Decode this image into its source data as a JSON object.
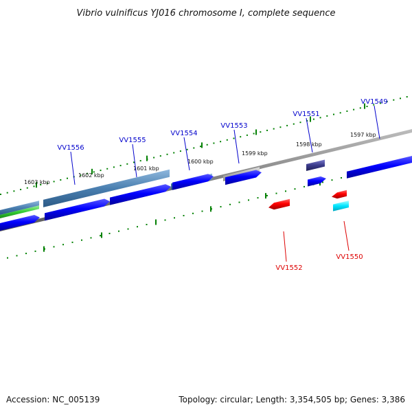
{
  "title": "Vibrio vulnificus YJ016 chromosome I, complete sequence",
  "footer": {
    "accession": "Accession: NC_005139",
    "topology": "Topology: circular; Length: 3,354,505 bp; Genes: 3,386"
  },
  "kbp_labels": [
    "1603 kbp",
    "1602 kbp",
    "1601 kbp",
    "1600 kbp",
    "1599 kbp",
    "1598 kbp",
    "1597 kbp"
  ],
  "gene_labels": [
    {
      "name": "VV1556",
      "strand": "forward",
      "color": "#0000cc"
    },
    {
      "name": "VV1555",
      "strand": "forward",
      "color": "#0000cc"
    },
    {
      "name": "VV1554",
      "strand": "forward",
      "color": "#0000cc"
    },
    {
      "name": "VV1553",
      "strand": "forward",
      "color": "#0000cc"
    },
    {
      "name": "VV1551",
      "strand": "forward",
      "color": "#0000cc"
    },
    {
      "name": "VV1549",
      "strand": "forward",
      "color": "#0000cc"
    },
    {
      "name": "VV1552",
      "strand": "reverse",
      "color": "#dd0000"
    },
    {
      "name": "VV1550",
      "strand": "reverse",
      "color": "#dd0000"
    }
  ],
  "colors": {
    "forward_cds": "#0000ff",
    "reverse_cds": "#ff0000",
    "backbone": "#808080",
    "ticks": "#008000",
    "feature_steel": "#4a7fb0",
    "feature_gray": "#b0b0b0",
    "feature_purple": "#3a3a8a",
    "feature_cyan": "#00e5ff",
    "feature_green": "#33cc33"
  }
}
